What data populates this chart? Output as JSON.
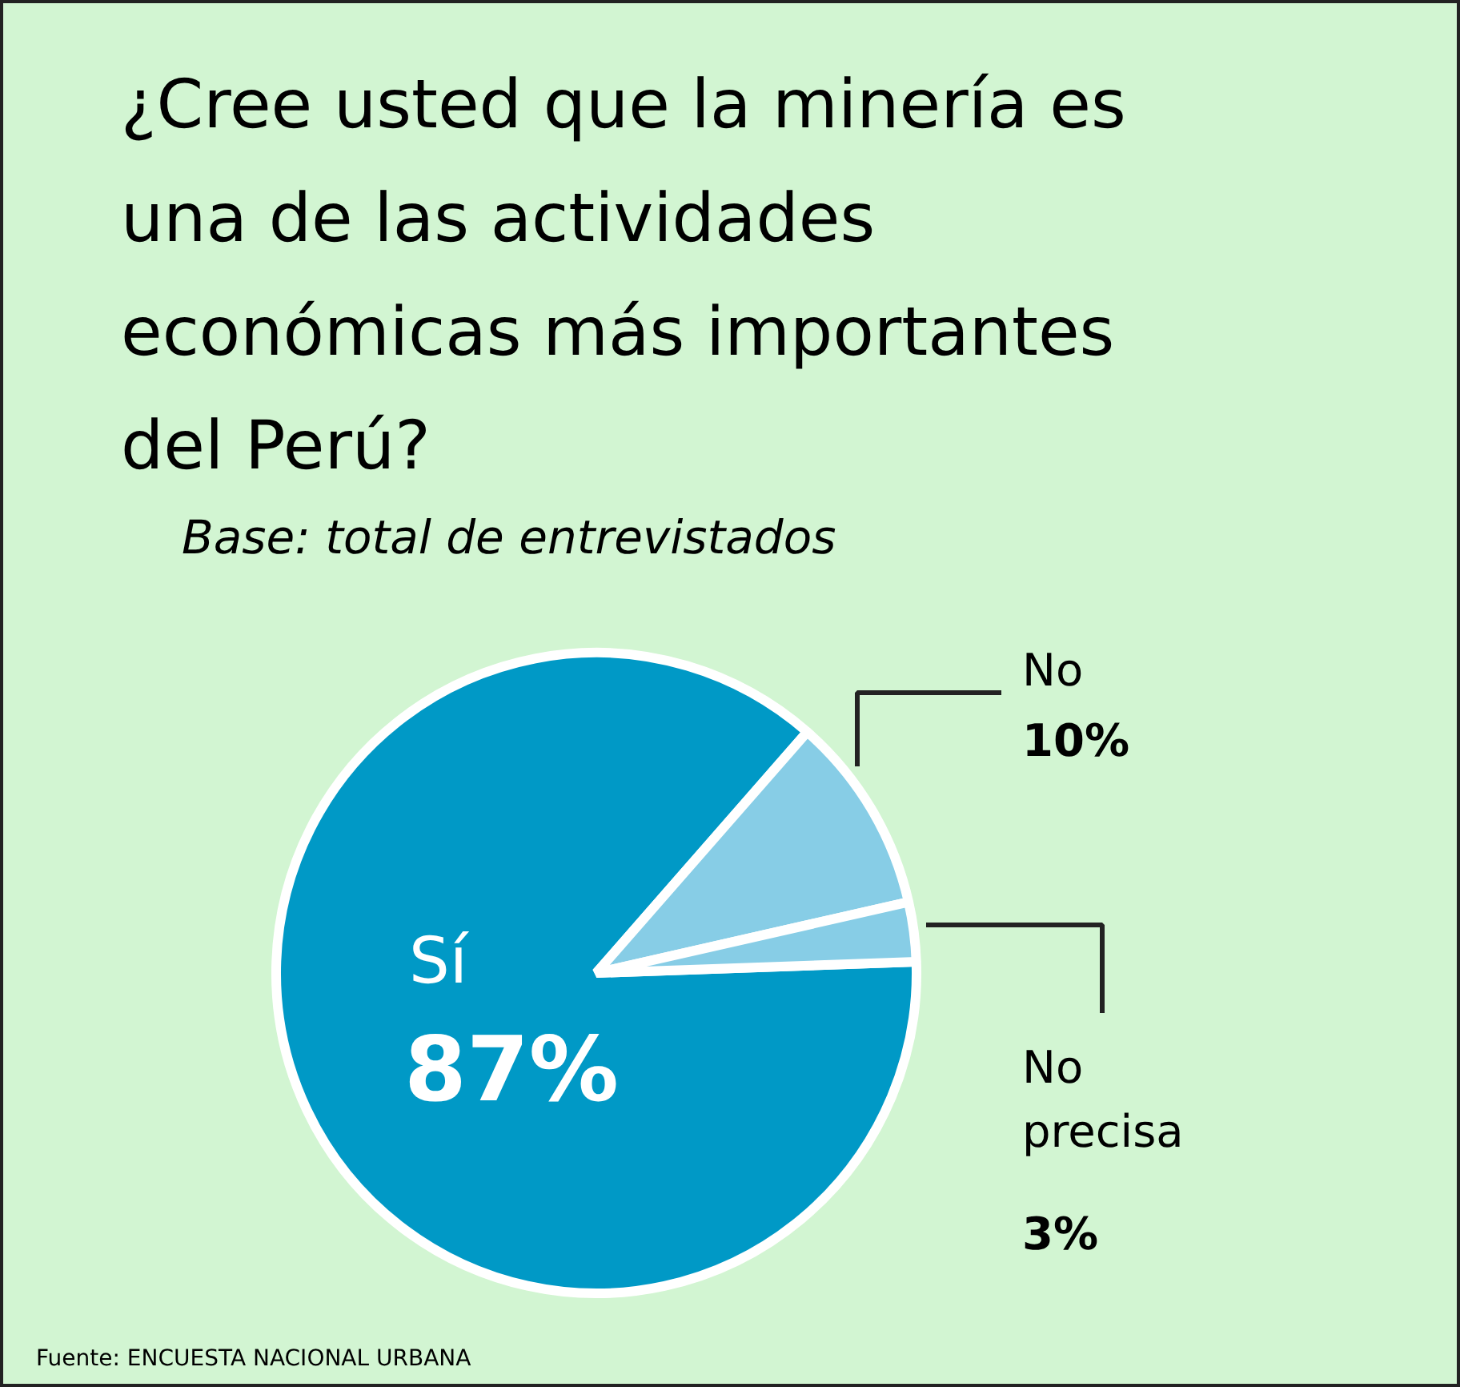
{
  "chart_data": {
    "type": "pie",
    "title": "¿Cree usted que la minería es una de las actividades económicas más importantes del Perú?",
    "subtitle": "Base: total de entrevistados",
    "categories": [
      "Sí",
      "No",
      "No precisa"
    ],
    "values": [
      87,
      10,
      3
    ],
    "colors": [
      "#0099c6",
      "#87cde6",
      "#87cde6"
    ],
    "value_labels": [
      "87%",
      "10%",
      "3%"
    ],
    "annotations": [
      "Fuente: ENCUESTA NACIONAL URBANA"
    ]
  }
}
